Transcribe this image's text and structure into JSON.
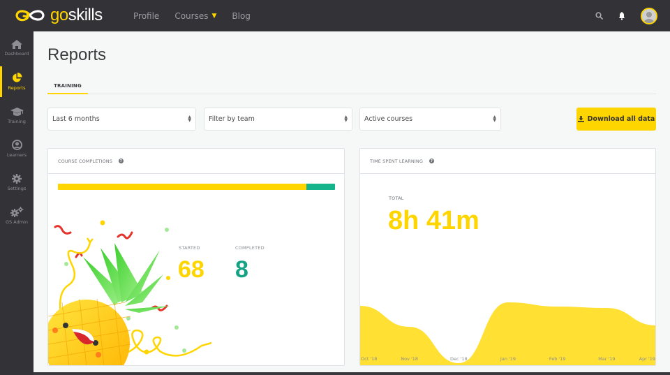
{
  "brand": {
    "go": "go",
    "skills": "skills",
    "accent": "#ffd500",
    "green": "#16b48a"
  },
  "nav": {
    "items": [
      {
        "label": "Profile"
      },
      {
        "label": "Courses",
        "has_dropdown": true
      },
      {
        "label": "Blog"
      }
    ],
    "icons": [
      "search-icon",
      "bell-icon",
      "avatar"
    ]
  },
  "sidebar": {
    "items": [
      {
        "label": "Dashboard",
        "icon": "home-icon",
        "active": false
      },
      {
        "label": "Reports",
        "icon": "pie-chart-icon",
        "active": true
      },
      {
        "label": "Training",
        "icon": "graduation-cap-icon",
        "active": false
      },
      {
        "label": "Learners",
        "icon": "user-circle-icon",
        "active": false
      },
      {
        "label": "Settings",
        "icon": "gear-icon",
        "active": false
      },
      {
        "label": "GS Admin",
        "icon": "gears-icon",
        "active": false
      }
    ]
  },
  "page": {
    "title": "Reports",
    "tabs": [
      {
        "label": "TRAINING",
        "active": true
      }
    ]
  },
  "filters": {
    "period": {
      "value": "Last 6 months"
    },
    "team": {
      "value": "Filter by team"
    },
    "courses": {
      "value": "Active courses"
    },
    "download_label": "Download all data"
  },
  "completions": {
    "title": "COURSE COMPLETIONS",
    "help": "?",
    "started_label": "STARTED",
    "started": "68",
    "completed_label": "COMPLETED",
    "completed": "8",
    "progress_started_pct": 89.6
  },
  "time_spent": {
    "title": "TIME SPENT LEARNING",
    "help": "?",
    "total_label": "TOTAL",
    "total": "8h 41m"
  },
  "chart_data": {
    "type": "area",
    "title": "Time spent learning",
    "categories": [
      "Oct '18",
      "Nov '18",
      "Dec '18",
      "Jan '19",
      "Feb '19",
      "Mar '19",
      "Apr '19"
    ],
    "values": [
      85,
      55,
      3,
      90,
      84,
      82,
      57
    ],
    "xlabel": "",
    "ylabel": "",
    "grid": false,
    "legend": "none",
    "color": "#ffe033"
  }
}
